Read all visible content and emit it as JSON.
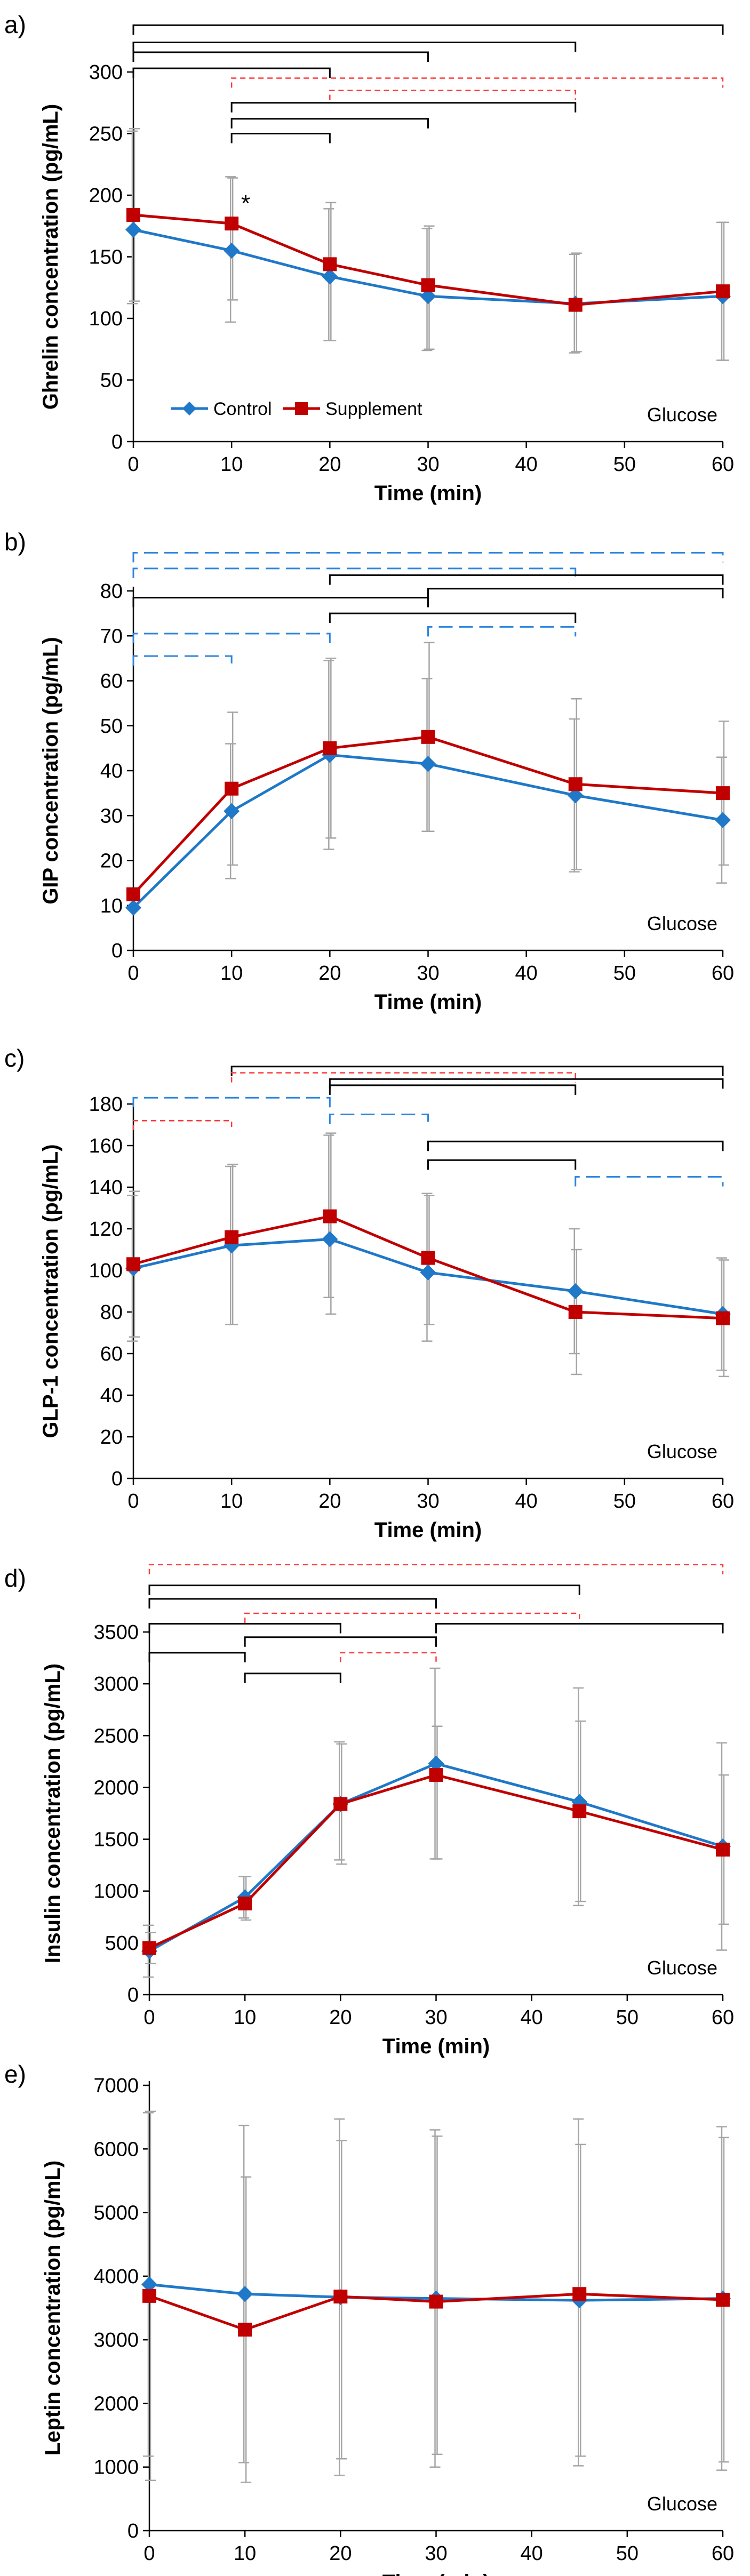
{
  "figure": {
    "condition": "Glucose",
    "legend": [
      {
        "name": "Control",
        "color": "#1f78c8",
        "marker": "diamond"
      },
      {
        "name": "Supplement",
        "color": "#c00000",
        "marker": "square"
      }
    ],
    "error_color": "#a6a6a6",
    "bracket_colors": {
      "black": "#000000",
      "red": "#ff3b3b",
      "blue": "#2e86de"
    }
  },
  "chart_data": [
    {
      "type": "line",
      "panel_label": "a)",
      "title": "",
      "xlabel": "Time (min)",
      "ylabel": "Ghrelin concentration (pg/mL)",
      "condition": "Glucose",
      "x": [
        0,
        10,
        20,
        30,
        45,
        60
      ],
      "xticks": [
        0,
        10,
        20,
        30,
        40,
        50,
        60
      ],
      "yticks": [
        0,
        50,
        100,
        150,
        200,
        250,
        300
      ],
      "xlim": [
        0,
        60
      ],
      "ylim": [
        0,
        300
      ],
      "show_legend": true,
      "series": [
        {
          "name": "Control",
          "values": [
            172,
            155,
            134,
            118,
            112,
            118
          ],
          "err_up": [
            80,
            60,
            55,
            55,
            40,
            60
          ],
          "err_down": [
            60,
            58,
            52,
            44,
            40,
            52
          ]
        },
        {
          "name": "Supplement",
          "values": [
            184,
            177,
            144,
            127,
            111,
            122
          ],
          "err_up": [
            70,
            37,
            50,
            48,
            42,
            56
          ],
          "err_down": [
            70,
            62,
            62,
            52,
            38,
            56
          ]
        }
      ],
      "annotations": [
        {
          "text": "*",
          "x": 11,
          "y": 193
        }
      ],
      "brackets": [
        {
          "x1": 0,
          "x2": 60,
          "y": 338,
          "style": "solid",
          "color": "black"
        },
        {
          "x1": 0,
          "x2": 45,
          "y": 324,
          "style": "solid",
          "color": "black"
        },
        {
          "x1": 0,
          "x2": 30,
          "y": 316,
          "style": "solid",
          "color": "black"
        },
        {
          "x1": 0,
          "x2": 20,
          "y": 303,
          "style": "solid",
          "color": "black"
        },
        {
          "x1": 10,
          "x2": 60,
          "y": 295,
          "style": "dashed",
          "color": "red"
        },
        {
          "x1": 20,
          "x2": 45,
          "y": 285,
          "style": "dashed",
          "color": "red"
        },
        {
          "x1": 10,
          "x2": 45,
          "y": 275,
          "style": "solid",
          "color": "black"
        },
        {
          "x1": 10,
          "x2": 30,
          "y": 262,
          "style": "solid",
          "color": "black"
        },
        {
          "x1": 10,
          "x2": 20,
          "y": 250,
          "style": "solid",
          "color": "black"
        }
      ]
    },
    {
      "type": "line",
      "panel_label": "b)",
      "title": "",
      "xlabel": "Time (min)",
      "ylabel": "GIP concentration (pg/mL)",
      "condition": "Glucose",
      "x": [
        0,
        10,
        20,
        30,
        45,
        60
      ],
      "xticks": [
        0,
        10,
        20,
        30,
        40,
        50,
        60
      ],
      "yticks": [
        0,
        10,
        20,
        30,
        40,
        50,
        60,
        70,
        80
      ],
      "xlim": [
        0,
        60
      ],
      "ylim": [
        0,
        80
      ],
      "show_legend": false,
      "series": [
        {
          "name": "Control",
          "values": [
            9.5,
            31,
            43.5,
            41.5,
            34.5,
            29
          ],
          "err_up": [
            0,
            15,
            21,
            19,
            17,
            14
          ],
          "err_down": [
            0,
            15,
            21,
            15,
            17,
            14
          ]
        },
        {
          "name": "Supplement",
          "values": [
            12.5,
            36,
            45,
            47.5,
            37,
            35
          ],
          "err_up": [
            0,
            17,
            20,
            21,
            19,
            16
          ],
          "err_down": [
            0,
            17,
            20,
            21,
            19,
            16
          ]
        }
      ],
      "annotations": [],
      "brackets": [
        {
          "x1": 0,
          "x2": 60,
          "y": 88.5,
          "style": "dashed",
          "color": "blue"
        },
        {
          "x1": 0,
          "x2": 45,
          "y": 85,
          "style": "dashed",
          "color": "blue"
        },
        {
          "x1": 20,
          "x2": 60,
          "y": 83.5,
          "style": "solid",
          "color": "black"
        },
        {
          "x1": 30,
          "x2": 60,
          "y": 80.5,
          "style": "solid",
          "color": "black"
        },
        {
          "x1": 0,
          "x2": 30,
          "y": 78.5,
          "style": "solid",
          "color": "black"
        },
        {
          "x1": 20,
          "x2": 45,
          "y": 75,
          "style": "solid",
          "color": "black"
        },
        {
          "x1": 30,
          "x2": 45,
          "y": 72,
          "style": "dashed",
          "color": "blue"
        },
        {
          "x1": 0,
          "x2": 20,
          "y": 70.5,
          "style": "dashed",
          "color": "blue"
        },
        {
          "x1": 0,
          "x2": 10,
          "y": 65.5,
          "style": "dashed",
          "color": "blue"
        }
      ]
    },
    {
      "type": "line",
      "panel_label": "c)",
      "title": "",
      "xlabel": "Time (min)",
      "ylabel": "GLP-1 concentration (pg/mL)",
      "condition": "Glucose",
      "x": [
        0,
        10,
        20,
        30,
        45,
        60
      ],
      "xticks": [
        0,
        10,
        20,
        30,
        40,
        50,
        60
      ],
      "yticks": [
        0,
        20,
        40,
        60,
        80,
        100,
        120,
        140,
        160,
        180
      ],
      "xlim": [
        0,
        60
      ],
      "ylim": [
        0,
        180
      ],
      "show_legend": false,
      "series": [
        {
          "name": "Control",
          "values": [
            101,
            112,
            115,
            99,
            90,
            79
          ],
          "err_up": [
            35,
            38,
            50,
            38,
            30,
            27
          ],
          "err_down": [
            35,
            38,
            28,
            33,
            30,
            27
          ]
        },
        {
          "name": "Supplement",
          "values": [
            103,
            116,
            126,
            106,
            80,
            77
          ],
          "err_up": [
            35,
            35,
            40,
            30,
            30,
            28
          ],
          "err_down": [
            35,
            42,
            47,
            32,
            30,
            28
          ]
        }
      ],
      "annotations": [],
      "brackets": [
        {
          "x1": 10,
          "x2": 60,
          "y": 198,
          "style": "solid",
          "color": "black"
        },
        {
          "x1": 10,
          "x2": 45,
          "y": 195,
          "style": "dashed",
          "color": "red"
        },
        {
          "x1": 20,
          "x2": 60,
          "y": 192,
          "style": "solid",
          "color": "black"
        },
        {
          "x1": 20,
          "x2": 45,
          "y": 189,
          "style": "solid",
          "color": "black"
        },
        {
          "x1": 0,
          "x2": 20,
          "y": 183,
          "style": "dashed",
          "color": "blue"
        },
        {
          "x1": 20,
          "x2": 30,
          "y": 175,
          "style": "dashed",
          "color": "blue"
        },
        {
          "x1": 0,
          "x2": 10,
          "y": 172,
          "style": "dashed",
          "color": "red"
        },
        {
          "x1": 30,
          "x2": 60,
          "y": 162,
          "style": "solid",
          "color": "black"
        },
        {
          "x1": 30,
          "x2": 45,
          "y": 153,
          "style": "solid",
          "color": "black"
        },
        {
          "x1": 45,
          "x2": 60,
          "y": 145,
          "style": "dashed",
          "color": "blue"
        }
      ]
    },
    {
      "type": "line",
      "panel_label": "d)",
      "title": "",
      "xlabel": "Time (min)",
      "ylabel": "Insulin concentration (pg/mL)",
      "condition": "Glucose",
      "x": [
        0,
        10,
        20,
        30,
        45,
        60
      ],
      "xticks": [
        0,
        10,
        20,
        30,
        40,
        50,
        60
      ],
      "yticks": [
        0,
        500,
        1000,
        1500,
        2000,
        2500,
        3000,
        3500
      ],
      "xlim": [
        0,
        60
      ],
      "ylim": [
        0,
        3500
      ],
      "show_legend": false,
      "series": [
        {
          "name": "Control",
          "values": [
            420,
            940,
            1840,
            2230,
            1860,
            1430
          ],
          "err_up": [
            250,
            200,
            600,
            920,
            1100,
            1000
          ],
          "err_down": [
            250,
            200,
            540,
            920,
            1000,
            1000
          ]
        },
        {
          "name": "Supplement",
          "values": [
            450,
            880,
            1840,
            2120,
            1770,
            1400
          ],
          "err_up": [
            150,
            260,
            580,
            470,
            870,
            720
          ],
          "err_down": [
            150,
            160,
            580,
            810,
            870,
            720
          ]
        }
      ],
      "annotations": [],
      "brackets": [
        {
          "x1": 0,
          "x2": 60,
          "y": 4150,
          "style": "dashed",
          "color": "red"
        },
        {
          "x1": 0,
          "x2": 45,
          "y": 3950,
          "style": "solid",
          "color": "black"
        },
        {
          "x1": 0,
          "x2": 30,
          "y": 3820,
          "style": "solid",
          "color": "black"
        },
        {
          "x1": 10,
          "x2": 45,
          "y": 3680,
          "style": "dashed",
          "color": "red"
        },
        {
          "x1": 0,
          "x2": 20,
          "y": 3580,
          "style": "solid",
          "color": "black"
        },
        {
          "x1": 30,
          "x2": 60,
          "y": 3580,
          "style": "solid",
          "color": "black"
        },
        {
          "x1": 10,
          "x2": 30,
          "y": 3450,
          "style": "solid",
          "color": "black"
        },
        {
          "x1": 20,
          "x2": 30,
          "y": 3300,
          "style": "dashed",
          "color": "red"
        },
        {
          "x1": 0,
          "x2": 10,
          "y": 3300,
          "style": "solid",
          "color": "black"
        },
        {
          "x1": 10,
          "x2": 20,
          "y": 3100,
          "style": "solid",
          "color": "black"
        }
      ]
    },
    {
      "type": "line",
      "panel_label": "e)",
      "title": "",
      "xlabel": "Time (min)",
      "ylabel": "Leptin concentration (pg/mL)",
      "condition": "Glucose",
      "x": [
        0,
        10,
        20,
        30,
        45,
        60
      ],
      "xticks": [
        0,
        10,
        20,
        30,
        40,
        50,
        60
      ],
      "yticks": [
        0,
        1000,
        2000,
        3000,
        4000,
        5000,
        6000,
        7000
      ],
      "xlim": [
        0,
        60
      ],
      "ylim": [
        0,
        7000
      ],
      "show_legend": false,
      "series": [
        {
          "name": "Control",
          "values": [
            3870,
            3720,
            3670,
            3650,
            3620,
            3650
          ],
          "err_up": [
            2700,
            2650,
            2800,
            2650,
            2850,
            2700
          ],
          "err_down": [
            2700,
            2650,
            2800,
            2650,
            2600,
            2700
          ]
        },
        {
          "name": "Supplement",
          "values": [
            3690,
            3160,
            3680,
            3600,
            3720,
            3630
          ],
          "err_up": [
            2900,
            2400,
            2450,
            2600,
            2350,
            2550
          ],
          "err_down": [
            2900,
            2400,
            2550,
            2400,
            2550,
            2550
          ]
        }
      ],
      "annotations": [],
      "brackets": []
    }
  ]
}
